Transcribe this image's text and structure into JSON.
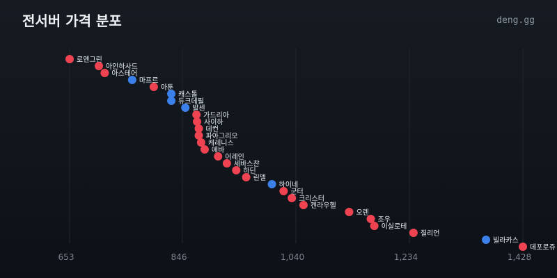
{
  "header": {
    "title": "전서버 가격 분포",
    "brand": "deng.gg"
  },
  "colors": {
    "red": "#ef4352",
    "blue": "#3b7fe8"
  },
  "chart_data": {
    "type": "scatter",
    "title": "전서버 가격 분포",
    "xlim": [
      640,
      1440
    ],
    "xticks": [
      653,
      846,
      1040,
      1234,
      1428
    ],
    "xtick_labels": [
      "653",
      "846",
      "1,040",
      "1,234",
      "1,428"
    ],
    "grid": true,
    "points": [
      {
        "name": "로엔그린",
        "x": 653,
        "group": "red"
      },
      {
        "name": "아인하사드",
        "x": 703,
        "group": "red"
      },
      {
        "name": "아스테어",
        "x": 713,
        "group": "red"
      },
      {
        "name": "마프르",
        "x": 760,
        "group": "blue"
      },
      {
        "name": "아툰",
        "x": 797,
        "group": "red"
      },
      {
        "name": "캐스톨",
        "x": 827,
        "group": "blue"
      },
      {
        "name": "듀크데필",
        "x": 827,
        "group": "blue"
      },
      {
        "name": "발센",
        "x": 851,
        "group": "blue"
      },
      {
        "name": "가드리아",
        "x": 870,
        "group": "red"
      },
      {
        "name": "사이하",
        "x": 871,
        "group": "red"
      },
      {
        "name": "데컨",
        "x": 874,
        "group": "red"
      },
      {
        "name": "파아그리오",
        "x": 874,
        "group": "red"
      },
      {
        "name": "케레니스",
        "x": 878,
        "group": "red"
      },
      {
        "name": "에바",
        "x": 884,
        "group": "red"
      },
      {
        "name": "어레인",
        "x": 907,
        "group": "red"
      },
      {
        "name": "세바스챤",
        "x": 922,
        "group": "red"
      },
      {
        "name": "하딘",
        "x": 938,
        "group": "red"
      },
      {
        "name": "린델",
        "x": 955,
        "group": "red"
      },
      {
        "name": "하이네",
        "x": 999,
        "group": "blue"
      },
      {
        "name": "군터",
        "x": 1019,
        "group": "red"
      },
      {
        "name": "크리스터",
        "x": 1033,
        "group": "red"
      },
      {
        "name": "켄라우헬",
        "x": 1053,
        "group": "red"
      },
      {
        "name": "오렌",
        "x": 1131,
        "group": "red"
      },
      {
        "name": "조우",
        "x": 1168,
        "group": "red"
      },
      {
        "name": "이실로테",
        "x": 1174,
        "group": "red"
      },
      {
        "name": "질리언",
        "x": 1241,
        "group": "red"
      },
      {
        "name": "빌라카스",
        "x": 1365,
        "group": "blue"
      },
      {
        "name": "데포로쥬",
        "x": 1428,
        "group": "red"
      }
    ]
  }
}
